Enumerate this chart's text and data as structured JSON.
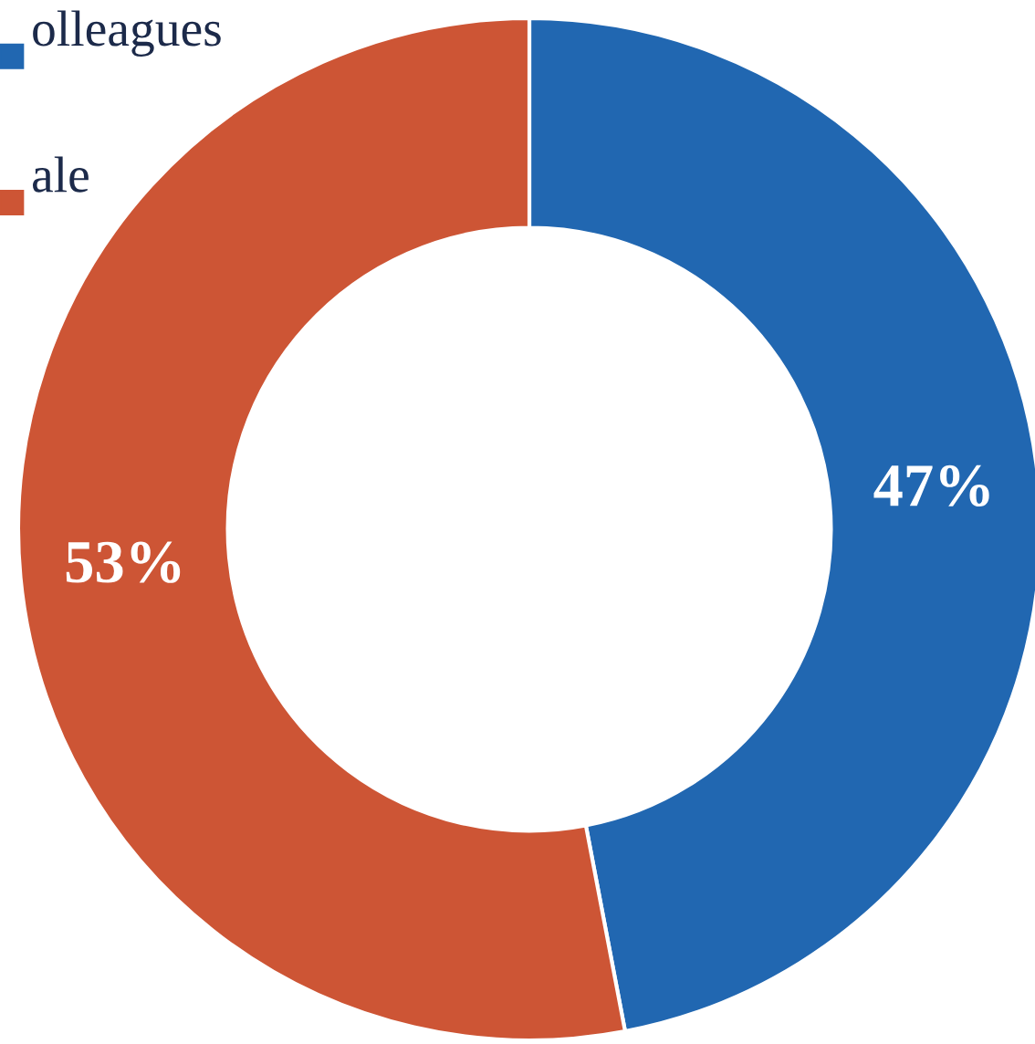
{
  "chart_data": {
    "type": "donut",
    "categories": [
      "olleagues",
      "ale"
    ],
    "values": [
      47,
      53
    ],
    "colors": [
      "#2167b1",
      "#cd5535"
    ],
    "value_labels": [
      "47%",
      "53%"
    ],
    "legend": "top left"
  }
}
